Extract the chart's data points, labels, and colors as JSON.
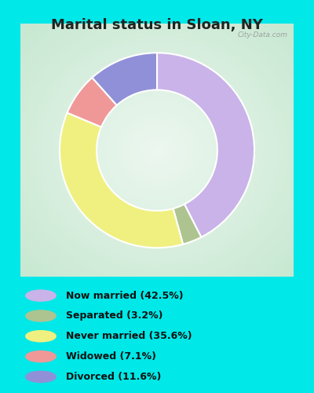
{
  "title": "Marital status in Sloan, NY",
  "slices": [
    42.5,
    3.2,
    35.6,
    7.1,
    11.6
  ],
  "labels": [
    "Now married (42.5%)",
    "Separated (3.2%)",
    "Never married (35.6%)",
    "Widowed (7.1%)",
    "Divorced (11.6%)"
  ],
  "colors": [
    "#c9b3e8",
    "#adc490",
    "#f0f080",
    "#f09898",
    "#9090d8"
  ],
  "legend_colors": [
    "#c9b3e8",
    "#adc490",
    "#f0f080",
    "#f09898",
    "#9090d8"
  ],
  "bg_outer": "#00e8e8",
  "bg_chart_edge": "#c8e8d0",
  "bg_chart_center": "#e8f8ee",
  "title_color": "#222222",
  "title_fontsize": 13,
  "watermark": "City-Data.com",
  "start_angle": 90,
  "donut_width": 0.38
}
